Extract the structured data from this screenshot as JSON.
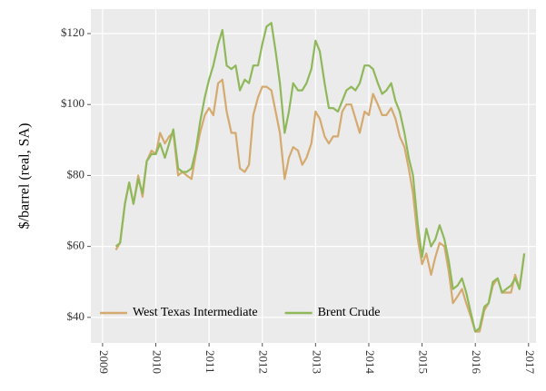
{
  "chart_data": {
    "type": "line",
    "y_label": "$/barrel (real, SA)",
    "x": [
      2009.25,
      2009.33,
      2009.42,
      2009.5,
      2009.58,
      2009.67,
      2009.75,
      2009.83,
      2009.92,
      2010.0,
      2010.08,
      2010.17,
      2010.25,
      2010.33,
      2010.42,
      2010.5,
      2010.58,
      2010.67,
      2010.75,
      2010.83,
      2010.92,
      2011.0,
      2011.08,
      2011.17,
      2011.25,
      2011.33,
      2011.42,
      2011.5,
      2011.58,
      2011.67,
      2011.75,
      2011.83,
      2011.92,
      2012.0,
      2012.08,
      2012.17,
      2012.25,
      2012.33,
      2012.42,
      2012.5,
      2012.58,
      2012.67,
      2012.75,
      2012.83,
      2012.92,
      2013.0,
      2013.08,
      2013.17,
      2013.25,
      2013.33,
      2013.42,
      2013.5,
      2013.58,
      2013.67,
      2013.75,
      2013.83,
      2013.92,
      2014.0,
      2014.08,
      2014.17,
      2014.25,
      2014.33,
      2014.42,
      2014.5,
      2014.58,
      2014.67,
      2014.75,
      2014.83,
      2014.92,
      2015.0,
      2015.08,
      2015.17,
      2015.25,
      2015.33,
      2015.42,
      2015.5,
      2015.58,
      2015.67,
      2015.75,
      2015.83,
      2015.92,
      2016.0,
      2016.08,
      2016.17,
      2016.25,
      2016.33,
      2016.42,
      2016.5,
      2016.58,
      2016.67,
      2016.75,
      2016.83,
      2016.92
    ],
    "series": [
      {
        "name": "West Texas Intermediate",
        "color": "#d4aa6e",
        "values": [
          59,
          61,
          72,
          78,
          72,
          80,
          74,
          84,
          87,
          86,
          92,
          89,
          91,
          92,
          80,
          81,
          80,
          79,
          86,
          92,
          97,
          99,
          97,
          106,
          107,
          98,
          92,
          92,
          82,
          81,
          83,
          97,
          102,
          105,
          105,
          104,
          98,
          92,
          79,
          85,
          88,
          87,
          83,
          85,
          89,
          98,
          96,
          91,
          89,
          91,
          91,
          98,
          100,
          100,
          96,
          92,
          98,
          97,
          103,
          100,
          97,
          97,
          99,
          96,
          91,
          88,
          82,
          75,
          62,
          55,
          58,
          52,
          57,
          61,
          60,
          53,
          44,
          46,
          48,
          44,
          40,
          36,
          36,
          42,
          44,
          49,
          51,
          47,
          47,
          47,
          52,
          48,
          58
        ]
      },
      {
        "name": "Brent Crude",
        "color": "#8fb85a",
        "values": [
          60,
          61,
          72,
          78,
          72,
          79,
          75,
          84,
          86,
          86,
          89,
          85,
          89,
          93,
          82,
          81,
          81,
          82,
          87,
          95,
          102,
          107,
          111,
          117,
          121,
          111,
          110,
          111,
          104,
          107,
          106,
          111,
          111,
          117,
          122,
          123,
          115,
          106,
          92,
          98,
          106,
          104,
          104,
          106,
          110,
          118,
          115,
          106,
          99,
          99,
          98,
          101,
          104,
          105,
          104,
          106,
          111,
          111,
          110,
          106,
          103,
          104,
          106,
          101,
          98,
          92,
          85,
          80,
          66,
          57,
          65,
          60,
          62,
          66,
          62,
          56,
          48,
          49,
          51,
          47,
          41,
          36,
          37,
          43,
          44,
          50,
          51,
          47,
          48,
          49,
          51,
          48,
          58
        ]
      }
    ],
    "xlim": [
      2008.78,
      2017.14
    ],
    "xticks": [
      2009,
      2010,
      2011,
      2012,
      2013,
      2014,
      2015,
      2016,
      2017
    ],
    "ylim": [
      32.8,
      126.9
    ],
    "yticks": [
      {
        "value": 40,
        "label": "$40"
      },
      {
        "value": 60,
        "label": "$60"
      },
      {
        "value": 80,
        "label": "$80"
      },
      {
        "value": 100,
        "label": "$100"
      },
      {
        "value": 120,
        "label": "$120"
      }
    ],
    "grid": true,
    "legend": "bottom-left"
  }
}
